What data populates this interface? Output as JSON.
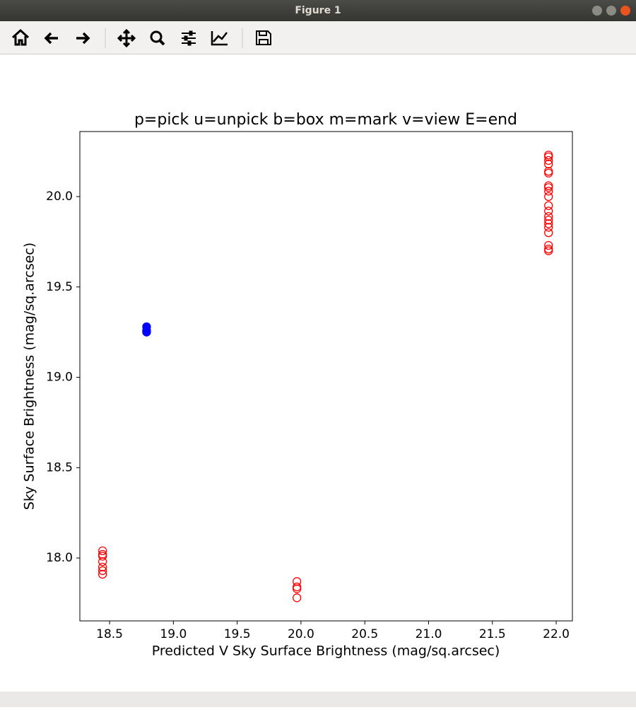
{
  "window_title": "Figure 1",
  "chart_data": {
    "type": "scatter",
    "title": "p=pick u=unpick b=box m=mark v=view E=end",
    "x_label": "Predicted V Sky Surface Brightness (mag/sq.arcsec)",
    "y_label": "Sky Surface Brightness (mag/sq.arcsec)",
    "xlim": [
      18.267,
      22.127
    ],
    "ylim": [
      17.652,
      20.36
    ],
    "xticks": [
      18.5,
      {
        "value": 19,
        "label": "19.0"
      },
      19.5,
      {
        "value": 20,
        "label": "20.0"
      },
      20.5,
      {
        "value": 21,
        "label": "21.0"
      },
      21.5,
      {
        "value": 22,
        "label": "22.0"
      }
    ],
    "yticks": [
      {
        "value": 18,
        "label": "18.0"
      },
      18.5,
      {
        "value": 19,
        "label": "19.0"
      },
      19.5,
      {
        "value": 20,
        "label": "20.0"
      }
    ],
    "grid": false,
    "series": [
      {
        "color": "#ff0000",
        "marker": "open",
        "x": [
          18.445,
          18.445,
          18.445,
          18.445,
          18.445,
          18.445,
          18.445,
          19.968,
          19.968,
          19.968,
          19.968,
          21.94,
          21.94,
          21.94,
          21.94,
          21.94,
          21.94,
          21.94,
          21.94,
          21.94,
          21.94,
          21.94,
          21.94,
          21.94,
          21.94,
          21.94,
          21.94,
          21.94,
          21.94,
          21.94,
          21.94
        ],
        "values": [
          18.04,
          18.02,
          18.01,
          17.98,
          17.95,
          17.93,
          17.91,
          17.87,
          17.84,
          17.83,
          17.78,
          20.23,
          20.22,
          20.2,
          20.18,
          20.14,
          20.13,
          20.06,
          20.05,
          20.03,
          20.0,
          19.95,
          19.92,
          19.89,
          19.87,
          19.85,
          19.83,
          19.8,
          19.73,
          19.71,
          19.7
        ]
      },
      {
        "color": "#0000ff",
        "marker": "filled",
        "x": [
          18.79,
          18.79,
          18.79
        ],
        "values": [
          19.28,
          19.26,
          19.25
        ]
      }
    ]
  }
}
